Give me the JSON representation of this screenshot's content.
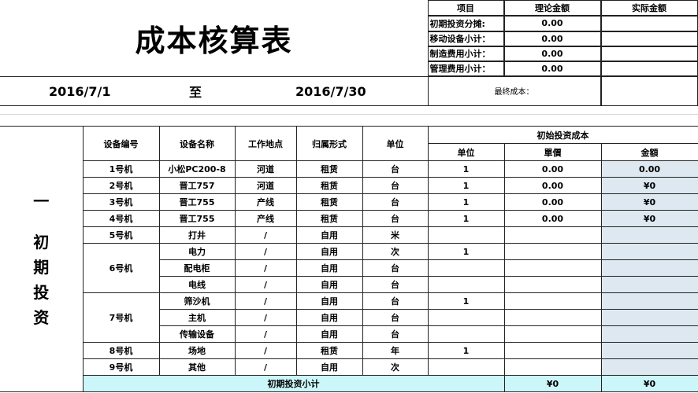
{
  "title": "成本核算表",
  "period": {
    "start": "2016/7/1",
    "to": "至",
    "end": "2016/7/30"
  },
  "summary": {
    "headers": [
      "项目",
      "理论金额",
      "实际金额"
    ],
    "rows": [
      {
        "item": "初期投资分摊:",
        "theory": "0.00",
        "actual": ""
      },
      {
        "item": "移动设备小计：",
        "theory": "0.00",
        "actual": ""
      },
      {
        "item": "制造费用小计：",
        "theory": "0.00",
        "actual": ""
      },
      {
        "item": "管理费用小计：",
        "theory": "0.00",
        "actual": ""
      }
    ],
    "final_label": "最终成本：",
    "final_value": ""
  },
  "section_label": [
    "一",
    "初",
    "期",
    "投",
    "资"
  ],
  "table": {
    "headers": [
      "设备编号",
      "设备名称",
      "工作地点",
      "归属形式",
      "单位"
    ],
    "group_header": "初始投资成本",
    "sub_headers": [
      "单位",
      "單價",
      "金額"
    ],
    "rows": [
      {
        "id": "1号机",
        "name": "小松PC200-8",
        "loc": "河道",
        "type": "租赁",
        "unit": "台",
        "qty": "1",
        "price": "0.00",
        "amount": "0.00"
      },
      {
        "id": "2号机",
        "name": "晋工757",
        "loc": "河道",
        "type": "租赁",
        "unit": "台",
        "qty": "1",
        "price": "0.00",
        "amount": "¥0"
      },
      {
        "id": "3号机",
        "name": "晋工755",
        "loc": "产线",
        "type": "租赁",
        "unit": "台",
        "qty": "1",
        "price": "0.00",
        "amount": "¥0"
      },
      {
        "id": "4号机",
        "name": "晋工755",
        "loc": "产线",
        "type": "租赁",
        "unit": "台",
        "qty": "1",
        "price": "0.00",
        "amount": "¥0"
      },
      {
        "id": "5号机",
        "name": "打井",
        "loc": "/",
        "type": "自用",
        "unit": "米",
        "qty": "",
        "price": "",
        "amount": ""
      },
      {
        "id": "6号机",
        "span": 3,
        "name": "电力",
        "loc": "/",
        "type": "自用",
        "unit": "次",
        "qty": "1",
        "price": "",
        "amount": ""
      },
      {
        "name": "配电柜",
        "loc": "/",
        "type": "自用",
        "unit": "台",
        "qty": "",
        "price": "",
        "amount": ""
      },
      {
        "name": "电线",
        "loc": "/",
        "type": "自用",
        "unit": "台",
        "qty": "",
        "price": "",
        "amount": ""
      },
      {
        "id": "7号机",
        "span": 3,
        "name": "筛沙机",
        "loc": "/",
        "type": "自用",
        "unit": "台",
        "qty": "1",
        "price": "",
        "amount": ""
      },
      {
        "name": "主机",
        "loc": "/",
        "type": "自用",
        "unit": "台",
        "qty": "",
        "price": "",
        "amount": ""
      },
      {
        "name": "传输设备",
        "loc": "/",
        "type": "自用",
        "unit": "台",
        "qty": "",
        "price": "",
        "amount": ""
      },
      {
        "id": "8号机",
        "name": "场地",
        "loc": "/",
        "type": "租赁",
        "unit": "年",
        "qty": "1",
        "price": "",
        "amount": ""
      },
      {
        "id": "9号机",
        "name": "其他",
        "loc": "/",
        "type": "自用",
        "unit": "次",
        "qty": "",
        "price": "",
        "amount": ""
      }
    ],
    "subtotal": {
      "label": "初期投资小计",
      "price": "¥0",
      "amount": "¥0"
    }
  },
  "colors": {
    "amount_fill": "#dde8f0",
    "subtotal_fill": "#ccf7fa"
  }
}
